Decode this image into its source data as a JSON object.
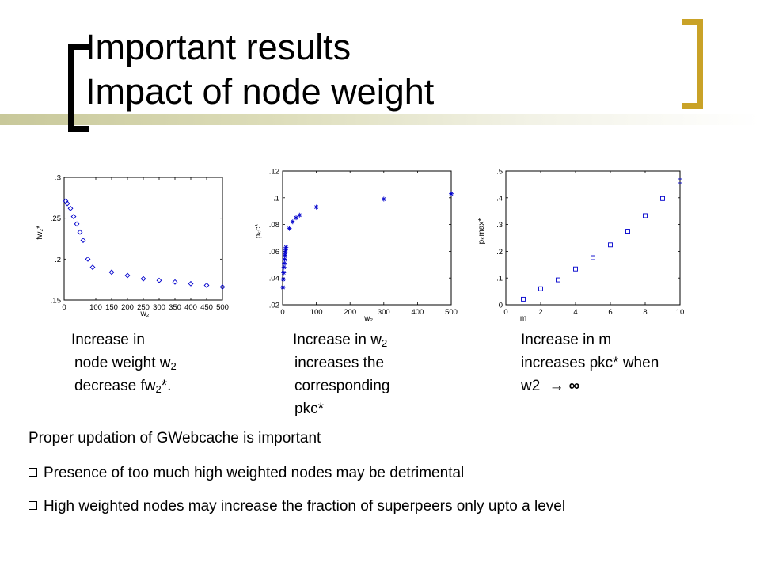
{
  "title": {
    "line1": "Important results",
    "line2": "Impact of node weight"
  },
  "chart_data": [
    {
      "type": "scatter",
      "marker": "diamond",
      "color": "#0000cc",
      "xlim": [
        0,
        500
      ],
      "ylim": [
        0.15,
        0.3
      ],
      "xticks": [
        0,
        100,
        150,
        200,
        250,
        300,
        350,
        400,
        450,
        500
      ],
      "yticks": [
        0.15,
        0.2,
        0.25,
        0.3
      ],
      "xlabel": "w₂",
      "ylabel": "fw₂*",
      "x": [
        5,
        10,
        20,
        30,
        40,
        50,
        60,
        75,
        90,
        150,
        200,
        250,
        300,
        350,
        400,
        450,
        500
      ],
      "values": [
        0.271,
        0.268,
        0.262,
        0.252,
        0.243,
        0.233,
        0.223,
        0.2,
        0.19,
        0.184,
        0.18,
        0.176,
        0.174,
        0.172,
        0.17,
        0.168,
        0.166
      ]
    },
    {
      "type": "scatter",
      "marker": "asterisk",
      "color": "#0000cc",
      "xlim": [
        0,
        500
      ],
      "ylim": [
        0.02,
        0.12
      ],
      "xticks": [
        0,
        100,
        200,
        300,
        400,
        500
      ],
      "yticks": [
        0.02,
        0.04,
        0.06,
        0.08,
        0.1,
        0.12
      ],
      "xlabel": "w₂",
      "ylabel": "pₖc*",
      "x": [
        1,
        2,
        3,
        4,
        5,
        6,
        7,
        8,
        9,
        10,
        20,
        30,
        40,
        50,
        100,
        300,
        500
      ],
      "values": [
        0.033,
        0.039,
        0.044,
        0.048,
        0.051,
        0.054,
        0.057,
        0.059,
        0.061,
        0.063,
        0.077,
        0.082,
        0.085,
        0.087,
        0.093,
        0.099,
        0.103
      ]
    },
    {
      "type": "scatter",
      "marker": "square",
      "color": "#0000cc",
      "xlim": [
        0,
        10
      ],
      "ylim": [
        0,
        0.5
      ],
      "xticks": [
        0,
        2,
        4,
        6,
        8,
        10
      ],
      "yticks": [
        0,
        0.1,
        0.2,
        0.3,
        0.4,
        0.5
      ],
      "xlabel": "m",
      "ylabel": "pₖmax*",
      "x": [
        1,
        2,
        3,
        4,
        5,
        6,
        7,
        8,
        9,
        10
      ],
      "values": [
        0.021,
        0.06,
        0.093,
        0.134,
        0.176,
        0.224,
        0.275,
        0.333,
        0.397,
        0.463
      ]
    }
  ],
  "captions": {
    "c1": {
      "l1": "Increase in",
      "l2a": "node weight w",
      "l2sub": "2",
      "l3a": "decrease fw",
      "l3sub": "2",
      "l3b": "*."
    },
    "c2": {
      "l1a": "Increase in w",
      "l1sub": "2",
      "l2": "increases the",
      "l3": "corresponding",
      "l4": "pkc*"
    },
    "c3": {
      "l1": "Increase in m",
      "l2": "increases pkc* when",
      "l3a": "w2 ",
      "l3arrow": "→",
      "l3inf": "∞"
    }
  },
  "bottom": {
    "heading": "Proper updation of GWebcache is important",
    "bullet1": "Presence of too much high weighted nodes may be detrimental",
    "bullet2": "High weighted nodes may increase the fraction of superpeers only upto a level"
  }
}
